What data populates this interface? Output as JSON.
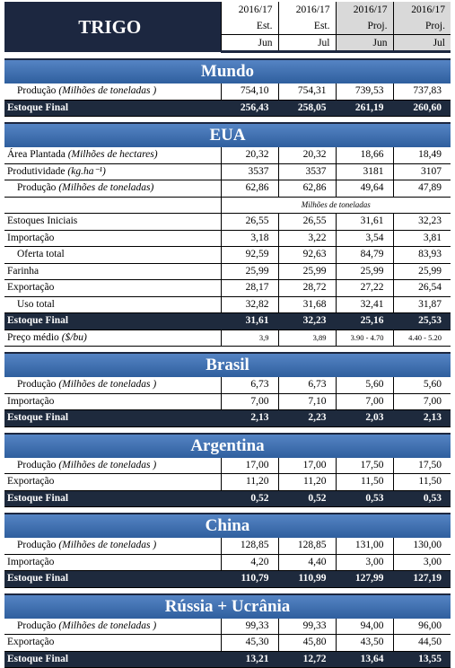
{
  "title": "TRIGO",
  "columns": [
    {
      "year": "2016/17",
      "kind": "Est.",
      "month": "Jun"
    },
    {
      "year": "2016/17",
      "kind": "Est.",
      "month": "Jul"
    },
    {
      "year": "2016/17",
      "kind": "Proj.",
      "month": "Jun"
    },
    {
      "year": "2016/17",
      "kind": "Proj.",
      "month": "Jul"
    }
  ],
  "sections": [
    {
      "name": "Mundo",
      "rows": [
        {
          "label": "Produção",
          "unit": "(Milhões de toneladas )",
          "indent": true,
          "values": [
            "754,10",
            "754,31",
            "739,53",
            "737,83"
          ]
        }
      ],
      "final": {
        "label": "Estoque Final",
        "values": [
          "256,43",
          "258,05",
          "261,19",
          "260,60"
        ]
      }
    },
    {
      "name": "EUA",
      "rows": [
        {
          "label": "Área Plantada",
          "unit": "(Milhões de hectares)",
          "values": [
            "20,32",
            "20,32",
            "18,66",
            "18,49"
          ]
        },
        {
          "label": "Produtividade",
          "unit": "(kg.ha⁻¹)",
          "values": [
            "3537",
            "3537",
            "3181",
            "3107"
          ]
        },
        {
          "label": "Produção",
          "unit": "(Milhões de toneladas)",
          "indent": true,
          "values": [
            "62,86",
            "62,86",
            "49,64",
            "47,89"
          ]
        },
        {
          "note": "Milhões de toneladas"
        },
        {
          "label": "Estoques Iniciais",
          "values": [
            "26,55",
            "26,55",
            "31,61",
            "32,23"
          ]
        },
        {
          "label": "Importação",
          "values": [
            "3,18",
            "3,22",
            "3,54",
            "3,81"
          ]
        },
        {
          "label": "Oferta total",
          "indent": true,
          "values": [
            "92,59",
            "92,63",
            "84,79",
            "83,93"
          ]
        },
        {
          "label": "Farinha",
          "values": [
            "25,99",
            "25,99",
            "25,99",
            "25,99"
          ]
        },
        {
          "label": "Exportação",
          "values": [
            "28,17",
            "28,72",
            "27,22",
            "26,54"
          ]
        },
        {
          "label": "Uso total",
          "indent": true,
          "values": [
            "32,82",
            "31,68",
            "32,41",
            "31,87"
          ]
        }
      ],
      "final": {
        "label": "Estoque Final",
        "values": [
          "31,61",
          "32,23",
          "25,16",
          "25,53"
        ]
      },
      "extra": [
        {
          "label": "Preço médio",
          "unit": "($/bu)",
          "values": [
            "3,9",
            "3,89",
            "3.90 - 4.70",
            "4.40 - 5.20"
          ]
        }
      ]
    },
    {
      "name": "Brasil",
      "rows": [
        {
          "label": "Produção",
          "unit": "(Milhões de toneladas )",
          "indent": true,
          "values": [
            "6,73",
            "6,73",
            "5,60",
            "5,60"
          ]
        },
        {
          "label": "Importação",
          "values": [
            "7,00",
            "7,10",
            "7,00",
            "7,00"
          ]
        }
      ],
      "final": {
        "label": "Estoque Final",
        "values": [
          "2,13",
          "2,23",
          "2,03",
          "2,13"
        ]
      }
    },
    {
      "name": "Argentina",
      "rows": [
        {
          "label": "Produção",
          "unit": "(Milhões de toneladas )",
          "indent": true,
          "values": [
            "17,00",
            "17,00",
            "17,50",
            "17,50"
          ]
        },
        {
          "label": "Exportação",
          "values": [
            "11,20",
            "11,20",
            "11,50",
            "11,50"
          ]
        }
      ],
      "final": {
        "label": "Estoque Final",
        "values": [
          "0,52",
          "0,52",
          "0,53",
          "0,53"
        ]
      }
    },
    {
      "name": "China",
      "rows": [
        {
          "label": "Produção",
          "unit": "(Milhões de toneladas )",
          "indent": true,
          "values": [
            "128,85",
            "128,85",
            "131,00",
            "130,00"
          ]
        },
        {
          "label": "Importação",
          "values": [
            "4,20",
            "4,40",
            "3,00",
            "3,00"
          ]
        }
      ],
      "final": {
        "label": "Estoque Final",
        "values": [
          "110,79",
          "110,99",
          "127,99",
          "127,19"
        ]
      }
    },
    {
      "name": "Rússia + Ucrânia",
      "rows": [
        {
          "label": "Produção",
          "unit": "(Milhões de toneladas )",
          "indent": true,
          "values": [
            "99,33",
            "99,33",
            "94,00",
            "96,00"
          ]
        },
        {
          "label": "Exportação",
          "values": [
            "45,30",
            "45,80",
            "43,50",
            "44,50"
          ]
        }
      ],
      "final": {
        "label": "Estoque Final",
        "values": [
          "13,21",
          "12,72",
          "13,64",
          "13,55"
        ]
      }
    }
  ]
}
